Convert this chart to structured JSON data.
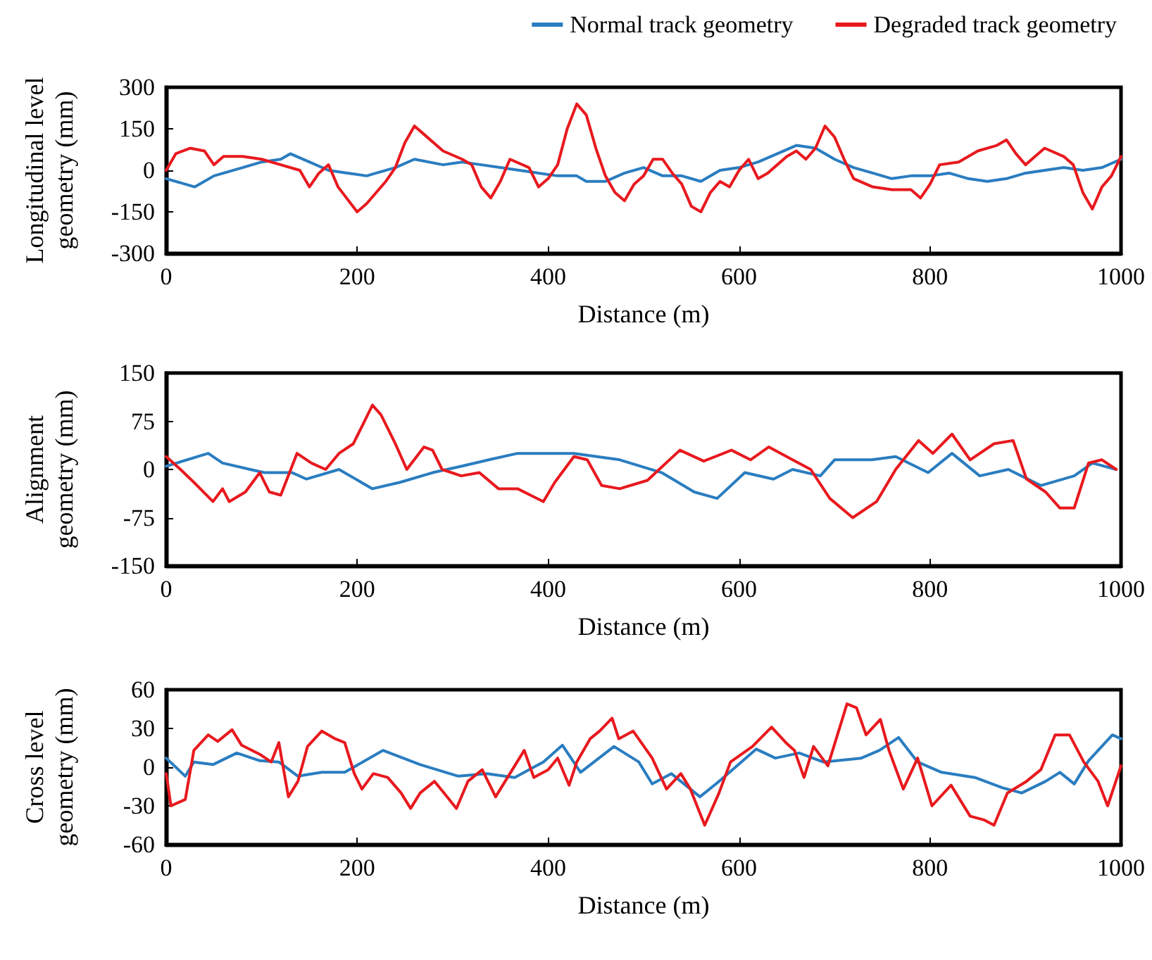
{
  "chart_data": [
    {
      "type": "line",
      "xlabel": "Distance (m)",
      "ylabel": "Longitudinal level geometry (mm)",
      "xlim": [
        0,
        1000
      ],
      "xticks": [
        0,
        200,
        400,
        600,
        800,
        1000
      ],
      "ylim": [
        -300,
        300
      ],
      "yticks": [
        -300,
        -150,
        0,
        150,
        300
      ],
      "grid": false,
      "legend": "top right",
      "marker": "none",
      "line_style": "solid",
      "series": [
        {
          "name": "Normal track geometry",
          "color": "#2a7dc0",
          "x": [
            0,
            30,
            50,
            80,
            100,
            120,
            130,
            150,
            170,
            190,
            210,
            220,
            240,
            260,
            290,
            310,
            330,
            350,
            370,
            390,
            410,
            430,
            440,
            460,
            480,
            500,
            520,
            540,
            560,
            580,
            600,
            620,
            640,
            660,
            680,
            700,
            720,
            740,
            760,
            780,
            800,
            820,
            840,
            860,
            880,
            900,
            920,
            940,
            960,
            980,
            1000
          ],
          "values": [
            -30,
            -60,
            -20,
            10,
            30,
            40,
            60,
            30,
            0,
            -10,
            -20,
            -10,
            10,
            40,
            20,
            30,
            20,
            10,
            0,
            -10,
            -20,
            -20,
            -40,
            -40,
            -10,
            10,
            -20,
            -20,
            -40,
            0,
            10,
            30,
            60,
            90,
            80,
            40,
            10,
            -10,
            -30,
            -20,
            -20,
            -10,
            -30,
            -40,
            -30,
            -10,
            0,
            10,
            0,
            10,
            40
          ]
        },
        {
          "name": "Degraded track geometry",
          "color": "#e8191e",
          "x": [
            0,
            10,
            25,
            40,
            50,
            60,
            80,
            100,
            120,
            140,
            150,
            160,
            170,
            180,
            200,
            210,
            220,
            230,
            240,
            250,
            260,
            270,
            290,
            310,
            320,
            330,
            340,
            350,
            360,
            380,
            390,
            400,
            410,
            420,
            430,
            440,
            450,
            460,
            470,
            480,
            490,
            500,
            510,
            520,
            530,
            540,
            550,
            560,
            570,
            580,
            590,
            600,
            610,
            620,
            630,
            640,
            650,
            660,
            670,
            680,
            690,
            700,
            710,
            720,
            740,
            760,
            780,
            790,
            800,
            810,
            830,
            850,
            870,
            880,
            890,
            900,
            910,
            920,
            940,
            950,
            960,
            970,
            980,
            990,
            1000
          ],
          "values": [
            0,
            60,
            80,
            70,
            20,
            50,
            50,
            40,
            20,
            0,
            -60,
            -10,
            20,
            -60,
            -150,
            -120,
            -80,
            -40,
            10,
            100,
            160,
            130,
            70,
            40,
            20,
            -60,
            -100,
            -40,
            40,
            10,
            -60,
            -30,
            20,
            150,
            240,
            200,
            80,
            -20,
            -80,
            -110,
            -50,
            -20,
            40,
            40,
            -10,
            -50,
            -130,
            -150,
            -80,
            -40,
            -60,
            0,
            40,
            -30,
            -10,
            20,
            50,
            70,
            40,
            80,
            160,
            120,
            40,
            -30,
            -60,
            -70,
            -70,
            -100,
            -50,
            20,
            30,
            70,
            90,
            110,
            60,
            20,
            50,
            80,
            50,
            20,
            -80,
            -140,
            -60,
            -20,
            50
          ]
        }
      ]
    },
    {
      "type": "line",
      "xlabel": "Distance (m)",
      "ylabel": "Alignment geometry (mm)",
      "xlim": [
        0,
        1000
      ],
      "xticks": [
        0,
        200,
        400,
        600,
        800,
        1000
      ],
      "ylim": [
        -150,
        150
      ],
      "yticks": [
        -150,
        -75,
        0,
        75,
        150
      ],
      "grid": false,
      "legend": false,
      "marker": "none",
      "line_style": "solid",
      "series": [
        {
          "color": "#2a7dc0",
          "x": [
            0,
            44,
            59,
            88,
            103,
            132,
            147,
            181,
            216,
            245,
            279,
            309,
            338,
            368,
            427,
            475,
            519,
            553,
            577,
            606,
            636,
            656,
            685,
            700,
            739,
            764,
            798,
            823,
            852,
            882,
            916,
            951,
            970,
            995
          ],
          "values": [
            5,
            25,
            10,
            0,
            -5,
            -5,
            -15,
            0,
            -30,
            -20,
            -5,
            5,
            15,
            25,
            25,
            15,
            -5,
            -35,
            -45,
            -5,
            -15,
            0,
            -10,
            15,
            15,
            20,
            -5,
            25,
            -10,
            0,
            -25,
            -10,
            10,
            0
          ]
        },
        {
          "color": "#e8191e",
          "x": [
            0,
            15,
            29,
            49,
            59,
            66,
            83,
            98,
            108,
            120,
            137,
            152,
            167,
            181,
            196,
            216,
            225,
            240,
            252,
            270,
            279,
            289,
            309,
            328,
            348,
            368,
            395,
            407,
            427,
            441,
            456,
            475,
            504,
            538,
            563,
            592,
            612,
            631,
            656,
            675,
            695,
            719,
            744,
            764,
            788,
            803,
            823,
            842,
            867,
            887,
            901,
            921,
            936,
            951,
            966,
            980,
            995
          ],
          "values": [
            20,
            0,
            -20,
            -50,
            -30,
            -50,
            -35,
            -5,
            -35,
            -40,
            25,
            10,
            0,
            25,
            40,
            100,
            85,
            40,
            0,
            35,
            30,
            0,
            -10,
            -5,
            -30,
            -30,
            -50,
            -20,
            20,
            15,
            -25,
            -30,
            -17,
            30,
            13,
            30,
            15,
            35,
            15,
            0,
            -45,
            -75,
            -50,
            0,
            45,
            25,
            55,
            15,
            40,
            45,
            -15,
            -35,
            -60,
            -60,
            10,
            15,
            0
          ]
        }
      ]
    },
    {
      "type": "line",
      "xlabel": "Distance (m)",
      "ylabel": "Cross level geometry (mm)",
      "xlim": [
        0,
        1000
      ],
      "xticks": [
        0,
        200,
        400,
        600,
        800,
        1000
      ],
      "ylim": [
        -60,
        60
      ],
      "yticks": [
        -60,
        -30,
        0,
        30,
        60
      ],
      "grid": false,
      "legend": false,
      "marker": "none",
      "line_style": "solid",
      "series": [
        {
          "color": "#2a7dc0",
          "x": [
            0,
            20,
            29,
            49,
            74,
            98,
            118,
            138,
            163,
            187,
            227,
            266,
            306,
            336,
            365,
            395,
            415,
            434,
            469,
            495,
            509,
            529,
            559,
            579,
            618,
            638,
            663,
            688,
            728,
            747,
            767,
            787,
            812,
            847,
            876,
            896,
            921,
            936,
            951,
            966,
            991,
            1000
          ],
          "values": [
            7,
            -7,
            4,
            2,
            11,
            5,
            4,
            -7,
            -4,
            -4,
            13,
            2,
            -7,
            -5,
            -8,
            4,
            17,
            -4,
            16,
            4,
            -13,
            -5,
            -23,
            -11,
            14,
            7,
            11,
            4,
            7,
            13,
            23,
            4,
            -4,
            -8,
            -16,
            -20,
            -11,
            -4,
            -13,
            5,
            25,
            22
          ]
        },
        {
          "color": "#e8191e",
          "x": [
            0,
            5,
            20,
            29,
            44,
            54,
            69,
            79,
            98,
            110,
            118,
            128,
            138,
            148,
            163,
            177,
            187,
            197,
            205,
            217,
            232,
            246,
            256,
            266,
            281,
            291,
            304,
            316,
            331,
            345,
            360,
            375,
            385,
            400,
            410,
            422,
            430,
            444,
            454,
            467,
            474,
            489,
            509,
            524,
            539,
            549,
            564,
            579,
            591,
            614,
            634,
            649,
            658,
            668,
            678,
            693,
            713,
            723,
            733,
            748,
            757,
            772,
            787,
            802,
            822,
            842,
            857,
            867,
            881,
            901,
            916,
            931,
            946,
            961,
            976,
            986,
            1000
          ],
          "values": [
            -5,
            -30,
            -25,
            13,
            25,
            20,
            29,
            17,
            10,
            4,
            19,
            -23,
            -11,
            16,
            28,
            22,
            19,
            -5,
            -17,
            -5,
            -8,
            -20,
            -32,
            -20,
            -11,
            -20,
            -32,
            -11,
            -2,
            -23,
            -5,
            13,
            -8,
            -2,
            7,
            -14,
            4,
            22,
            28,
            38,
            22,
            28,
            7,
            -17,
            -5,
            -17,
            -45,
            -20,
            4,
            16,
            31,
            19,
            13,
            -8,
            16,
            1,
            49,
            46,
            25,
            37,
            13,
            -17,
            7,
            -30,
            -14,
            -38,
            -41,
            -45,
            -20,
            -11,
            -2,
            25,
            25,
            4,
            -11,
            -30,
            1
          ]
        }
      ]
    }
  ]
}
